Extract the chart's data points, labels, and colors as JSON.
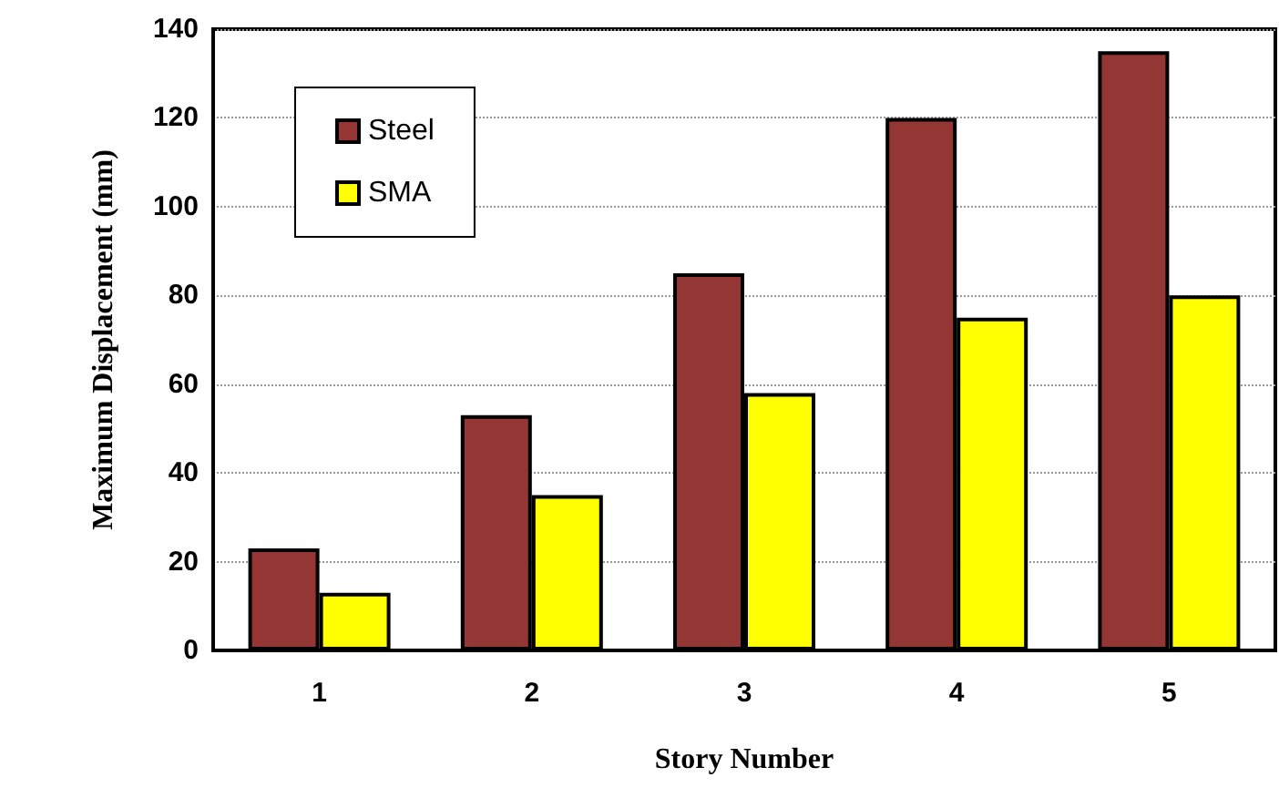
{
  "chart_data": {
    "type": "bar",
    "xlabel": "Story Number",
    "ylabel": "Maximum Displacement (mm)",
    "categories": [
      "1",
      "2",
      "3",
      "4",
      "5"
    ],
    "series": [
      {
        "name": "Steel",
        "color": "#943634",
        "values": [
          23,
          53,
          85,
          120,
          135
        ]
      },
      {
        "name": "SMA",
        "color": "#ffff00",
        "values": [
          13,
          35,
          58,
          75,
          80
        ]
      }
    ],
    "ylim": [
      0,
      140
    ],
    "yticks": [
      0,
      20,
      40,
      60,
      80,
      100,
      120,
      140
    ],
    "grid": "y",
    "legend": "top left"
  }
}
